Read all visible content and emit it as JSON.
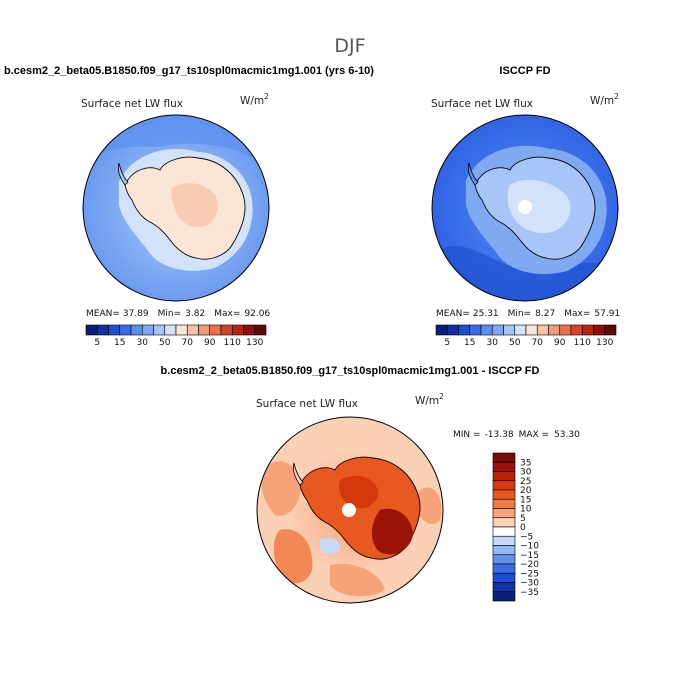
{
  "figure": {
    "title": "DJF"
  },
  "chart_data": [
    {
      "type": "heatmap",
      "projection": "south-polar-stereographic",
      "title": "b.cesm2_2_beta05.B1850.f09_g17_ts10spl0macmic1mg1.001 (yrs 6-10)",
      "variable": "Surface net LW flux",
      "units_base": "W/m",
      "units_exp": "2",
      "stats": {
        "mean_label": "MEAN=",
        "mean": "37.89",
        "min_label": "Min=",
        "min": "3.82",
        "max_label": "Max=",
        "max": "92.06"
      },
      "colorbar": {
        "orientation": "horizontal",
        "levels": [
          5,
          10,
          15,
          20,
          30,
          40,
          50,
          60,
          70,
          80,
          90,
          100,
          110,
          120,
          130
        ],
        "tick_labels": [
          "5",
          "15",
          "30",
          "50",
          "70",
          "90",
          "110",
          "130"
        ],
        "colors": [
          "#0a1c7a",
          "#13319e",
          "#1f4fd0",
          "#3a6ee8",
          "#5b8eef",
          "#7faaf2",
          "#a7c5f7",
          "#d3e2fb",
          "#fbe5d6",
          "#f6c3a6",
          "#f09a78",
          "#e7704f",
          "#d5452b",
          "#b72515",
          "#8f0e0e",
          "#5e0707"
        ]
      },
      "field_note": "ocean ~20-40 W/m2 (blue), Antarctic interior ~60-80 W/m2 (light pink/peach), coastal ring ~40-60"
    },
    {
      "type": "heatmap",
      "projection": "south-polar-stereographic",
      "title": "ISCCP FD",
      "variable": "Surface net LW flux",
      "units_base": "W/m",
      "units_exp": "2",
      "stats": {
        "mean_label": "MEAN=",
        "mean": "25.31",
        "min_label": "Min=",
        "min": "8.27",
        "max_label": "Max=",
        "max": "57.91"
      },
      "colorbar": {
        "orientation": "horizontal",
        "levels": [
          5,
          10,
          15,
          20,
          30,
          40,
          50,
          60,
          70,
          80,
          90,
          100,
          110,
          120,
          130
        ],
        "tick_labels": [
          "5",
          "15",
          "30",
          "50",
          "70",
          "90",
          "110",
          "130"
        ],
        "colors": [
          "#0a1c7a",
          "#13319e",
          "#1f4fd0",
          "#3a6ee8",
          "#5b8eef",
          "#7faaf2",
          "#a7c5f7",
          "#d3e2fb",
          "#fbe5d6",
          "#f6c3a6",
          "#f09a78",
          "#e7704f",
          "#d5452b",
          "#b72515",
          "#8f0e0e",
          "#5e0707"
        ]
      },
      "field_note": "ocean ~15-30 W/m2 (blue), Antarctic interior ~40-60 W/m2 (pale blue), missing data at pole"
    },
    {
      "type": "heatmap",
      "projection": "south-polar-stereographic",
      "title": "b.cesm2_2_beta05.B1850.f09_g17_ts10spl0macmic1mg1.001 - ISCCP FD",
      "variable": "Surface net LW flux",
      "units_base": "W/m",
      "units_exp": "2",
      "stats": {
        "min_label": "MIN =",
        "min": "-13.38",
        "max_label": "MAX =",
        "max": "53.30"
      },
      "colorbar": {
        "orientation": "vertical",
        "levels": [
          35,
          30,
          25,
          20,
          15,
          10,
          5,
          0,
          -5,
          -10,
          -15,
          -20,
          -25,
          -30,
          -35
        ],
        "tick_labels": [
          "35",
          "30",
          "25",
          "20",
          "15",
          "10",
          "5",
          "0",
          "−5",
          "−10",
          "−15",
          "−20",
          "−25",
          "−30",
          "−35"
        ],
        "colors": [
          "#7a0c0c",
          "#9b1308",
          "#bb2207",
          "#d6380b",
          "#e8581f",
          "#f27a45",
          "#f7a37a",
          "#fbd1b6",
          "#ffffff",
          "#c6d9f8",
          "#95b7f2",
          "#6592ec",
          "#3a6ce3",
          "#1f4bd0",
          "#1333a6",
          "#0b1f7c"
        ]
      },
      "field_note": "difference mostly positive ~0-15 over ocean, ~20-35 over Antarctica"
    }
  ]
}
